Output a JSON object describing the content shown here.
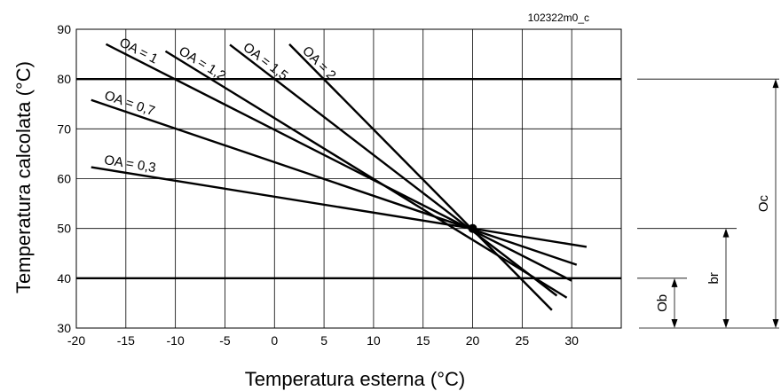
{
  "chart_data": {
    "type": "line",
    "code": "102322m0_c",
    "xlabel": "Temperatura esterna (°C)",
    "ylabel": "Temperatura calcolata  (°C)",
    "xlim": [
      -20,
      35
    ],
    "ylim": [
      30,
      90
    ],
    "x_ticks": [
      "-20",
      "-15",
      "-10",
      "-5",
      "0",
      "5",
      "10",
      "15",
      "20",
      "25",
      "30"
    ],
    "y_ticks": [
      "30",
      "40",
      "50",
      "60",
      "70",
      "80",
      "90"
    ],
    "grid": true,
    "horizontal_lines": [
      80,
      40
    ],
    "pivot_point": [
      20,
      50
    ],
    "series": [
      {
        "name": "OA = 0,3",
        "x": [
          -18.5,
          31.5
        ],
        "y": [
          62.3,
          46.3
        ]
      },
      {
        "name": "OA = 0,7",
        "x": [
          -18.5,
          30.5
        ],
        "y": [
          75.8,
          42.7
        ]
      },
      {
        "name": "OA = 1",
        "x": [
          -17,
          30
        ],
        "y": [
          87,
          39.5
        ]
      },
      {
        "name": "OA = 1,2",
        "x": [
          -11,
          29.5
        ],
        "y": [
          85.6,
          36.1
        ]
      },
      {
        "name": "OA = 1,5",
        "x": [
          -4.5,
          28.5
        ],
        "y": [
          86.9,
          36.5
        ]
      },
      {
        "name": "OA = 2",
        "x": [
          1.5,
          28
        ],
        "y": [
          87,
          33.6
        ]
      }
    ],
    "dimensions": [
      {
        "label": "Ob",
        "from": 30,
        "to": 40
      },
      {
        "label": "br",
        "from": 30,
        "to": 50
      },
      {
        "label": "Oc",
        "from": 30,
        "to": 80
      }
    ]
  }
}
